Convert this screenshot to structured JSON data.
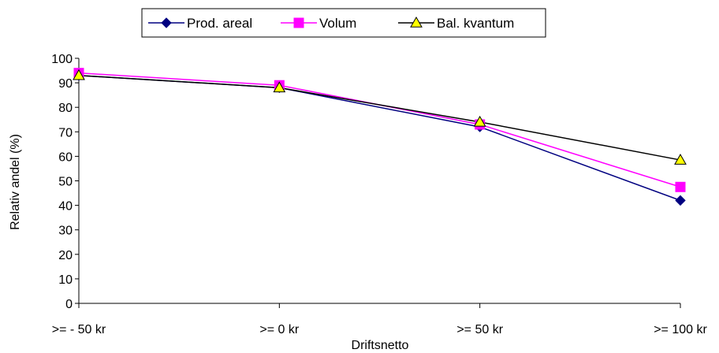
{
  "chart_data": {
    "type": "line",
    "categories": [
      ">= - 50 kr",
      ">= 0 kr",
      ">= 50 kr",
      ">= 100 kr"
    ],
    "series": [
      {
        "name": "Prod. areal",
        "values": [
          93,
          88,
          72,
          42
        ],
        "color": "#000080",
        "marker": "diamond"
      },
      {
        "name": "Volum",
        "values": [
          94,
          89,
          73,
          47.5
        ],
        "color": "#ff00ff",
        "marker": "square"
      },
      {
        "name": "Bal. kvantum",
        "values": [
          93,
          88,
          74,
          58.5
        ],
        "color": "#000000",
        "marker": "triangle",
        "marker_fill": "#ffff00"
      }
    ],
    "xlabel": "Driftsnetto",
    "ylabel": "Relativ andel (%)",
    "ylim": [
      0,
      100
    ],
    "yticks": [
      0,
      10,
      20,
      30,
      40,
      50,
      60,
      70,
      80,
      90,
      100
    ],
    "grid": false,
    "legend_position": "top"
  }
}
